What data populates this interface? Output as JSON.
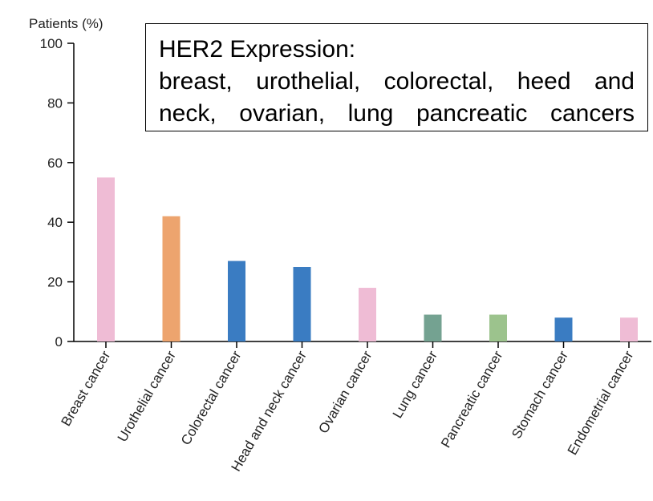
{
  "chart_data": {
    "type": "bar",
    "ylabel": "Patients (%)",
    "ylim": [
      0,
      100
    ],
    "yticks": [
      0,
      20,
      40,
      60,
      80,
      100
    ],
    "grid": false,
    "categories": [
      "Breast cancer",
      "Urothelial cancer",
      "Colorectal cancer",
      "Head and neck cancer",
      "Ovarian cancer",
      "Lung cancer",
      "Pancreatic cancer",
      "Stomach cancer",
      "Endometrial cancer"
    ],
    "values": [
      55,
      42,
      27,
      25,
      18,
      9,
      9,
      8,
      8
    ],
    "colors": [
      "#efbcd5",
      "#eda46e",
      "#3a7cc2",
      "#3a7cc2",
      "#efbcd5",
      "#74a291",
      "#9cc38d",
      "#3a7cc2",
      "#efbcd5"
    ],
    "annotation": {
      "lines": [
        "HER2 Expression:",
        "breast, urothelial, colorectal, heed and",
        "neck, ovarian, lung pancreatic cancers"
      ]
    }
  }
}
